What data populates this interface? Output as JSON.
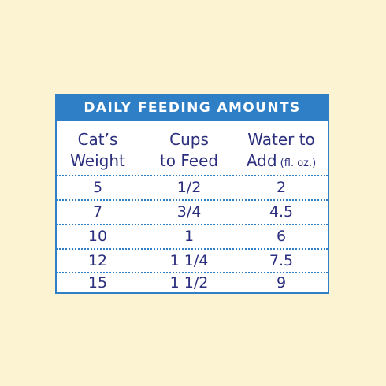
{
  "table": {
    "title": "DAILY FEEDING AMOUNTS",
    "headers": [
      {
        "line1": "Cat’s",
        "line2": "Weight",
        "suffix": ""
      },
      {
        "line1": "Cups",
        "line2": "to Feed",
        "suffix": ""
      },
      {
        "line1": "Water to",
        "line2": "Add",
        "suffix": " (fl. oz.)"
      }
    ],
    "rows": [
      [
        "5",
        "1/2",
        "2"
      ],
      [
        "7",
        "3/4",
        "4.5"
      ],
      [
        "10",
        "1",
        "6"
      ],
      [
        "12",
        "1 1/4",
        "7.5"
      ],
      [
        "15",
        "1 1/2",
        "9"
      ]
    ]
  },
  "colors": {
    "background": "#fcf3d3",
    "accent": "#2f7fc7",
    "text": "#2c2f7d"
  }
}
